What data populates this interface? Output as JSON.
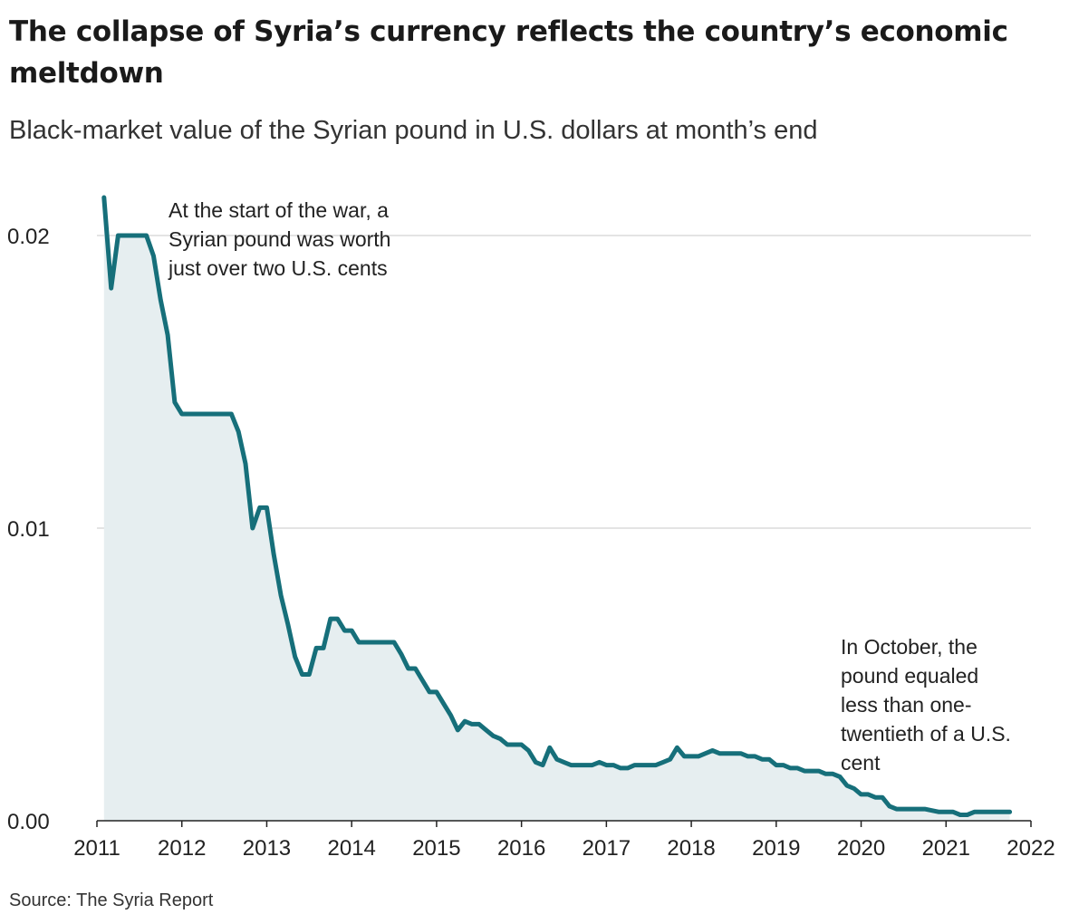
{
  "chart_data": {
    "type": "area",
    "title": "The collapse of Syria’s currency reflects the country’s economic meltdown",
    "subtitle": "Black-market value of the Syrian pound in U.S. dollars at month’s end",
    "source": "Source: The Syria Report",
    "xlabel": "",
    "ylabel": "",
    "xlim": [
      2011,
      2022
    ],
    "ylim": [
      0,
      0.02
    ],
    "grid": true,
    "x_ticks": [
      "2011",
      "2012",
      "2013",
      "2014",
      "2015",
      "2016",
      "2017",
      "2018",
      "2019",
      "2020",
      "2021",
      "2022"
    ],
    "y_ticks": [
      "0.00",
      "0.01",
      "0.02"
    ],
    "colors": {
      "line": "#166f7a",
      "area": "#e6eef0",
      "grid": "#c8c8c8"
    },
    "annotations": [
      {
        "lines": [
          "At the start of the war, a",
          "Syrian pound was worth",
          "just over two U.S. cents"
        ]
      },
      {
        "lines": [
          "In October, the",
          "pound equaled",
          "less than one-",
          "twentieth of a U.S.",
          "cent"
        ]
      }
    ],
    "series": [
      {
        "x": [
          2011.083,
          2011.167,
          2011.25,
          2011.333,
          2011.417,
          2011.5,
          2011.583,
          2011.667,
          2011.75,
          2011.833,
          2011.917,
          2012.0,
          2012.083,
          2012.167,
          2012.25,
          2012.333,
          2012.417,
          2012.5,
          2012.583,
          2012.667,
          2012.75,
          2012.833,
          2012.917,
          2013.0,
          2013.083,
          2013.167,
          2013.25,
          2013.333,
          2013.417,
          2013.5,
          2013.583,
          2013.667,
          2013.75,
          2013.833,
          2013.917,
          2014.0,
          2014.083,
          2014.167,
          2014.25,
          2014.333,
          2014.417,
          2014.5,
          2014.583,
          2014.667,
          2014.75,
          2014.833,
          2014.917,
          2015.0,
          2015.083,
          2015.167,
          2015.25,
          2015.333,
          2015.417,
          2015.5,
          2015.583,
          2015.667,
          2015.75,
          2015.833,
          2015.917,
          2016.0,
          2016.083,
          2016.167,
          2016.25,
          2016.333,
          2016.417,
          2016.5,
          2016.583,
          2016.667,
          2016.75,
          2016.833,
          2016.917,
          2017.0,
          2017.083,
          2017.167,
          2017.25,
          2017.333,
          2017.417,
          2017.5,
          2017.583,
          2017.667,
          2017.75,
          2017.833,
          2017.917,
          2018.0,
          2018.083,
          2018.167,
          2018.25,
          2018.333,
          2018.417,
          2018.5,
          2018.583,
          2018.667,
          2018.75,
          2018.833,
          2018.917,
          2019.0,
          2019.083,
          2019.167,
          2019.25,
          2019.333,
          2019.417,
          2019.5,
          2019.583,
          2019.667,
          2019.75,
          2019.833,
          2019.917,
          2020.0,
          2020.083,
          2020.167,
          2020.25,
          2020.333,
          2020.417,
          2020.5,
          2020.583,
          2020.667,
          2020.75,
          2020.833,
          2020.917,
          2021.0,
          2021.083,
          2021.167,
          2021.25,
          2021.333,
          2021.417,
          2021.5,
          2021.583,
          2021.667,
          2021.75
        ],
        "y": [
          0.0213,
          0.0182,
          0.02,
          0.02,
          0.02,
          0.02,
          0.02,
          0.0193,
          0.0178,
          0.0166,
          0.0143,
          0.0139,
          0.0139,
          0.0139,
          0.0139,
          0.0139,
          0.0139,
          0.0139,
          0.0139,
          0.0133,
          0.0122,
          0.01,
          0.0107,
          0.0107,
          0.0091,
          0.0077,
          0.0067,
          0.0056,
          0.005,
          0.005,
          0.0059,
          0.0059,
          0.0069,
          0.0069,
          0.0065,
          0.0065,
          0.0061,
          0.0061,
          0.0061,
          0.0061,
          0.0061,
          0.0061,
          0.0057,
          0.0052,
          0.0052,
          0.0048,
          0.0044,
          0.0044,
          0.004,
          0.0036,
          0.0031,
          0.0034,
          0.0033,
          0.0033,
          0.0031,
          0.0029,
          0.0028,
          0.0026,
          0.0026,
          0.0026,
          0.0024,
          0.002,
          0.0019,
          0.0025,
          0.0021,
          0.002,
          0.0019,
          0.0019,
          0.0019,
          0.0019,
          0.002,
          0.0019,
          0.0019,
          0.0018,
          0.0018,
          0.0019,
          0.0019,
          0.0019,
          0.0019,
          0.002,
          0.0021,
          0.0025,
          0.0022,
          0.0022,
          0.0022,
          0.0023,
          0.0024,
          0.0023,
          0.0023,
          0.0023,
          0.0023,
          0.0022,
          0.0022,
          0.0021,
          0.0021,
          0.0019,
          0.0019,
          0.0018,
          0.0018,
          0.0017,
          0.0017,
          0.0017,
          0.0016,
          0.0016,
          0.0015,
          0.0012,
          0.0011,
          0.0009,
          0.0009,
          0.0008,
          0.0008,
          0.0005,
          0.0004,
          0.0004,
          0.0004,
          0.0004,
          0.0004,
          0.00035,
          0.0003,
          0.0003,
          0.0003,
          0.0002,
          0.0002,
          0.0003,
          0.0003,
          0.0003,
          0.0003,
          0.0003,
          0.0003
        ]
      }
    ]
  }
}
